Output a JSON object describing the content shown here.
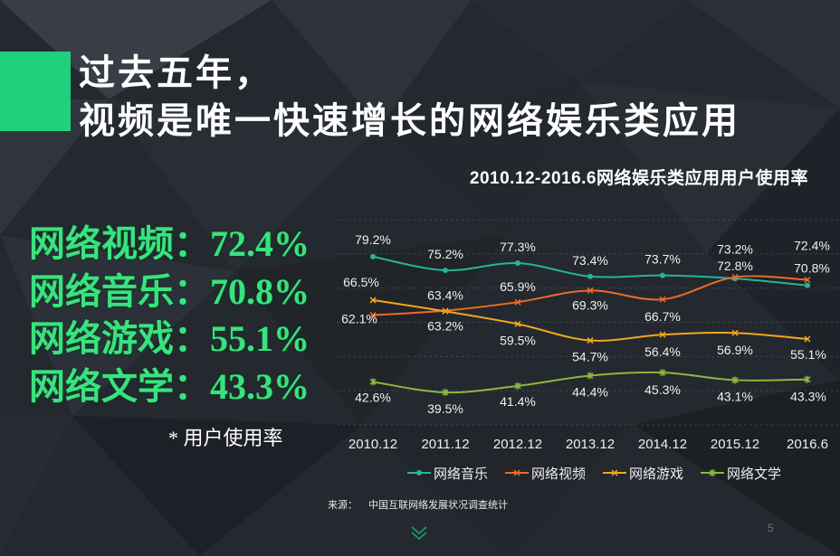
{
  "slide": {
    "accent_color": "#1fd17d",
    "title_line1": "过去五年，",
    "title_line2": "视频是唯一快速增长的网络娱乐类应用",
    "stats_color": "#3ae27f",
    "stats": [
      {
        "label": "网络视频：",
        "value": "72.4%"
      },
      {
        "label": "网络音乐：",
        "value": "70.8%"
      },
      {
        "label": "网络游戏：",
        "value": "55.1%"
      },
      {
        "label": "网络文学：",
        "value": "43.3%"
      }
    ],
    "footnote": "* 用户使用率",
    "source_label": "来源：",
    "source_text": "中国互联网络发展状况调查统计",
    "page_number": "5",
    "nav_icon": "chevron-down-icon"
  },
  "chart_data": {
    "type": "line",
    "title": "2010.12-2016.6网络娱乐类应用用户使用率",
    "categories": [
      "2010.12",
      "2011.12",
      "2012.12",
      "2013.12",
      "2014.12",
      "2015.12",
      "2016.6"
    ],
    "unit": "%",
    "ylim": [
      30,
      90
    ],
    "grid": true,
    "smooth": true,
    "legend": "bottom",
    "series": [
      {
        "name": "网络音乐",
        "color": "#26b598",
        "marker": "circle",
        "values": [
          79.2,
          75.2,
          77.3,
          73.4,
          73.7,
          72.8,
          70.8
        ]
      },
      {
        "name": "网络视频",
        "color": "#ee6b26",
        "marker": "x",
        "values": [
          62.1,
          63.4,
          65.9,
          69.3,
          66.7,
          73.2,
          72.4
        ]
      },
      {
        "name": "网络游戏",
        "color": "#f2a71b",
        "marker": "x",
        "values": [
          66.5,
          63.2,
          59.5,
          54.7,
          56.4,
          56.9,
          55.1
        ]
      },
      {
        "name": "网络文学",
        "color": "#8cb83e",
        "marker": "star",
        "values": [
          42.6,
          39.5,
          41.4,
          44.4,
          45.3,
          43.1,
          43.3
        ]
      }
    ]
  }
}
